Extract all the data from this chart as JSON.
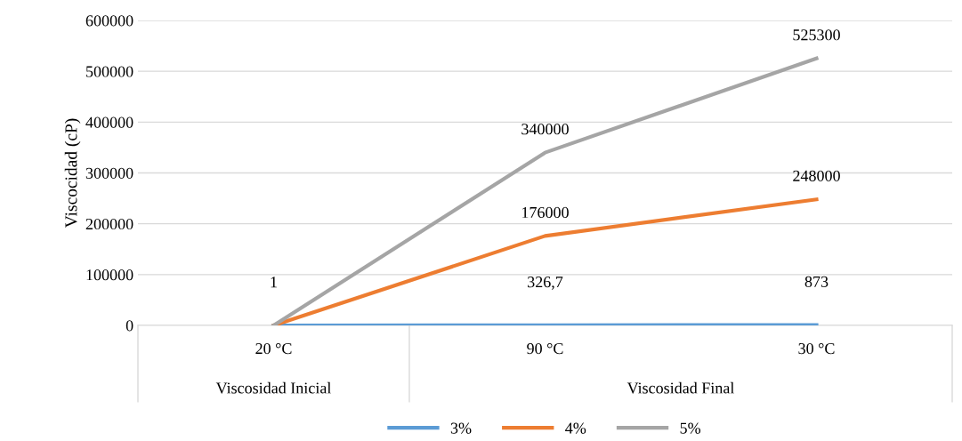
{
  "chart_data": {
    "type": "line",
    "ylabel": "Viscocidad (cP)",
    "categories": [
      "20 °C",
      "90 °C",
      "30 °C"
    ],
    "series": [
      {
        "name": "3%",
        "color": "#5b9bd5",
        "values": [
          1,
          326.7,
          873
        ],
        "value_labels": [
          "1",
          "326,7",
          "873"
        ]
      },
      {
        "name": "4%",
        "color": "#ed7d31",
        "values": [
          0,
          176000,
          248000
        ],
        "value_labels": [
          null,
          "176000",
          "248000"
        ]
      },
      {
        "name": "5%",
        "color": "#a5a5a5",
        "values": [
          0,
          340000,
          525300
        ],
        "value_labels": [
          null,
          "340000",
          "525300"
        ]
      }
    ],
    "annotations": [
      "Viscosidad Inicial",
      "Viscosidad Final"
    ],
    "ylim": [
      0,
      600000
    ],
    "yticks": [
      0,
      100000,
      200000,
      300000,
      400000,
      500000,
      600000
    ],
    "grid": "y",
    "legend": "bottom",
    "marker": "none",
    "line_style": "solid"
  }
}
